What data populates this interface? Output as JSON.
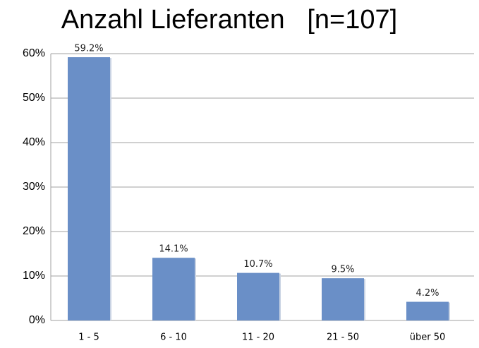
{
  "chart_data": {
    "type": "bar",
    "title": "Anzahl Lieferanten   [n=107]",
    "categories": [
      "1 - 5",
      "6 - 10",
      "11 - 20",
      "21 - 50",
      "über 50"
    ],
    "values": [
      59.2,
      14.1,
      10.7,
      9.5,
      4.2
    ],
    "value_labels": [
      "59.2%",
      "14.1%",
      "10.7%",
      "9.5%",
      "4.2%"
    ],
    "color": "#6a8fc7",
    "ylim": [
      0,
      60
    ],
    "yticks": [
      {
        "value": 0,
        "label": "0%"
      },
      {
        "value": 10,
        "label": "10%"
      },
      {
        "value": 20,
        "label": "20%"
      },
      {
        "value": 30,
        "label": "30%"
      },
      {
        "value": 40,
        "label": "40%"
      },
      {
        "value": 50,
        "label": "50%"
      },
      {
        "value": 60,
        "label": "60%"
      }
    ],
    "grid": true
  }
}
